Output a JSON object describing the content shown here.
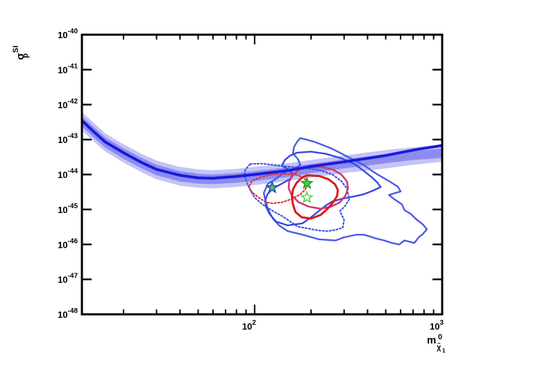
{
  "chart_data": {
    "type": "line",
    "title": "",
    "x_scale": "log",
    "y_scale": "log",
    "xlim": [
      12,
      1000
    ],
    "ylim": [
      1e-48,
      1e-40
    ],
    "xlabel": {
      "main": "m",
      "sub": "χ̃",
      "sub2": "1",
      "sup": "0"
    },
    "ylabel": {
      "main": "σ",
      "sub": "p",
      "sup": "SI"
    },
    "x_ticks": [
      {
        "value": 100,
        "base": "10",
        "exp": "2"
      },
      {
        "value": 1000,
        "base": "10",
        "exp": "3"
      }
    ],
    "y_ticks": [
      {
        "value": 1e-40,
        "base": "10",
        "exp": "-40"
      },
      {
        "value": 1e-41,
        "base": "10",
        "exp": "-41"
      },
      {
        "value": 1e-42,
        "base": "10",
        "exp": "-42"
      },
      {
        "value": 1e-43,
        "base": "10",
        "exp": "-43"
      },
      {
        "value": 1e-44,
        "base": "10",
        "exp": "-44"
      },
      {
        "value": 1e-45,
        "base": "10",
        "exp": "-45"
      },
      {
        "value": 1e-46,
        "base": "10",
        "exp": "-46"
      },
      {
        "value": 1e-47,
        "base": "10",
        "exp": "-47"
      },
      {
        "value": 1e-48,
        "base": "10",
        "exp": "-48"
      }
    ],
    "grid": false,
    "limit_curve": {
      "color": "#1a1adc",
      "points": [
        [
          12,
          3.5e-43
        ],
        [
          14,
          1.6e-43
        ],
        [
          16,
          8.5e-44
        ],
        [
          20,
          4.2e-44
        ],
        [
          25,
          2.2e-44
        ],
        [
          30,
          1.4e-44
        ],
        [
          40,
          9.5e-45
        ],
        [
          50,
          8e-45
        ],
        [
          60,
          7.8e-45
        ],
        [
          80,
          8.8e-45
        ],
        [
          100,
          1e-44
        ],
        [
          150,
          1.3e-44
        ],
        [
          200,
          1.7e-44
        ],
        [
          300,
          2.3e-44
        ],
        [
          500,
          3.5e-44
        ],
        [
          700,
          5e-44
        ],
        [
          1000,
          6.8e-44
        ]
      ]
    },
    "band_1sigma": {
      "color": "#8c8cf0",
      "lower": [
        [
          12,
          2.4e-43
        ],
        [
          14,
          1.1e-43
        ],
        [
          16,
          5.8e-44
        ],
        [
          20,
          2.8e-44
        ],
        [
          25,
          1.5e-44
        ],
        [
          30,
          9.5e-45
        ],
        [
          40,
          6.3e-45
        ],
        [
          50,
          5.5e-45
        ],
        [
          60,
          5.3e-45
        ],
        [
          80,
          5.8e-45
        ],
        [
          100,
          6.5e-45
        ],
        [
          150,
          8.5e-45
        ],
        [
          200,
          1.1e-44
        ],
        [
          300,
          1.5e-44
        ],
        [
          500,
          2.1e-44
        ],
        [
          700,
          2.6e-44
        ],
        [
          1000,
          3e-44
        ]
      ],
      "upper": [
        [
          12,
          4.6e-43
        ],
        [
          14,
          2.2e-43
        ],
        [
          16,
          1.15e-43
        ],
        [
          20,
          5.6e-44
        ],
        [
          25,
          3e-44
        ],
        [
          30,
          1.9e-44
        ],
        [
          40,
          1.25e-44
        ],
        [
          50,
          1.05e-44
        ],
        [
          60,
          1e-44
        ],
        [
          80,
          1.1e-44
        ],
        [
          100,
          1.25e-44
        ],
        [
          150,
          1.6e-44
        ],
        [
          200,
          2e-44
        ],
        [
          300,
          2.7e-44
        ],
        [
          500,
          3.8e-44
        ],
        [
          700,
          4.6e-44
        ],
        [
          1000,
          5.5e-44
        ]
      ]
    },
    "band_2sigma": {
      "color": "#c4c4f6",
      "lower": [
        [
          12,
          1.8e-43
        ],
        [
          14,
          8.5e-44
        ],
        [
          16,
          4.5e-44
        ],
        [
          20,
          2.2e-44
        ],
        [
          25,
          1.15e-44
        ],
        [
          30,
          7.3e-45
        ],
        [
          40,
          4.8e-45
        ],
        [
          50,
          4.2e-45
        ],
        [
          60,
          4e-45
        ],
        [
          80,
          4.4e-45
        ],
        [
          100,
          5e-45
        ],
        [
          150,
          6.5e-45
        ],
        [
          200,
          8.2e-45
        ],
        [
          300,
          1.1e-44
        ],
        [
          500,
          1.5e-44
        ],
        [
          700,
          1.9e-44
        ],
        [
          1000,
          2.3e-44
        ]
      ],
      "upper": [
        [
          12,
          6e-43
        ],
        [
          14,
          2.9e-43
        ],
        [
          16,
          1.5e-43
        ],
        [
          20,
          7.3e-44
        ],
        [
          25,
          3.9e-44
        ],
        [
          30,
          2.5e-44
        ],
        [
          40,
          1.65e-44
        ],
        [
          50,
          1.4e-44
        ],
        [
          60,
          1.32e-44
        ],
        [
          80,
          1.45e-44
        ],
        [
          100,
          1.65e-44
        ],
        [
          150,
          2.1e-44
        ],
        [
          200,
          2.6e-44
        ],
        [
          300,
          3.5e-44
        ],
        [
          500,
          5e-44
        ],
        [
          700,
          6e-44
        ],
        [
          1000,
          7.2e-44
        ]
      ]
    },
    "contours": [
      {
        "style": "solid",
        "color": "#4a5ae6",
        "width": 2.4,
        "points": [
          [
            175,
            1.1e-43
          ],
          [
            188,
            1e-43
          ],
          [
            210,
            8.5e-44
          ],
          [
            230,
            7e-44
          ],
          [
            258,
            5.5e-44
          ],
          [
            290,
            4e-44
          ],
          [
            330,
            2.8e-44
          ],
          [
            380,
            1.9e-44
          ],
          [
            420,
            1.3e-44
          ],
          [
            460,
            9.5e-45
          ],
          [
            520,
            6.5e-45
          ],
          [
            580,
            4.5e-45
          ],
          [
            600,
            3.3e-45
          ],
          [
            520,
            2.6e-45
          ],
          [
            560,
            1.9e-45
          ],
          [
            610,
            1.4e-45
          ],
          [
            630,
            9.5e-46
          ],
          [
            680,
            7.5e-46
          ],
          [
            720,
            5.5e-46
          ],
          [
            790,
            3.7e-46
          ],
          [
            830,
            2.7e-46
          ],
          [
            790,
            2e-46
          ],
          [
            750,
            1.6e-46
          ],
          [
            710,
            1.1e-46
          ],
          [
            630,
            1.3e-46
          ],
          [
            590,
            1e-46
          ],
          [
            540,
            1.1e-46
          ],
          [
            490,
            1.3e-46
          ],
          [
            440,
            1.5e-46
          ],
          [
            410,
            1.7e-46
          ],
          [
            380,
            1.9e-46
          ],
          [
            350,
            1.9e-46
          ],
          [
            300,
            1.6e-46
          ],
          [
            270,
            1.3e-46
          ],
          [
            220,
            1.4e-46
          ],
          [
            180,
            1.9e-46
          ],
          [
            150,
            2.4e-46
          ],
          [
            135,
            3.5e-46
          ],
          [
            125,
            5.5e-46
          ],
          [
            118,
            1e-45
          ],
          [
            115,
            1.6e-45
          ],
          [
            113,
            2.3e-45
          ],
          [
            112,
            3e-45
          ],
          [
            118,
            5.5e-45
          ],
          [
            130,
            7.5e-45
          ],
          [
            142,
            1.1e-44
          ],
          [
            150,
            1.3e-44
          ],
          [
            165,
            1.5e-44
          ],
          [
            175,
            1.9e-44
          ],
          [
            170,
            2.8e-44
          ],
          [
            160,
            4e-44
          ],
          [
            162,
            6e-44
          ],
          [
            168,
            8.5e-44
          ],
          [
            175,
            1.1e-43
          ]
        ]
      },
      {
        "style": "solid",
        "color": "#3848e0",
        "width": 2.4,
        "points": [
          [
            168,
            4.2e-44
          ],
          [
            200,
            4.5e-44
          ],
          [
            240,
            3.9e-44
          ],
          [
            290,
            2.9e-44
          ],
          [
            340,
            2e-44
          ],
          [
            380,
            1.3e-44
          ],
          [
            420,
            8.5e-45
          ],
          [
            450,
            6e-45
          ],
          [
            470,
            4.4e-45
          ],
          [
            430,
            3.5e-45
          ],
          [
            380,
            2.7e-45
          ],
          [
            330,
            2.3e-45
          ],
          [
            290,
            2e-45
          ],
          [
            260,
            1.7e-45
          ],
          [
            240,
            1.3e-45
          ],
          [
            220,
            9e-46
          ],
          [
            200,
            6e-46
          ],
          [
            180,
            4e-46
          ],
          [
            150,
            3.5e-46
          ],
          [
            130,
            4.5e-46
          ],
          [
            120,
            7.5e-46
          ],
          [
            115,
            1.2e-45
          ],
          [
            114,
            1.8e-45
          ],
          [
            117,
            2.7e-45
          ],
          [
            125,
            4e-45
          ],
          [
            140,
            5.5e-45
          ],
          [
            155,
            7.5e-45
          ],
          [
            160,
            1.05e-44
          ],
          [
            150,
            1.4e-44
          ],
          [
            140,
            1.8e-44
          ],
          [
            145,
            2.6e-44
          ],
          [
            155,
            3.5e-44
          ],
          [
            168,
            4.2e-44
          ]
        ]
      },
      {
        "style": "dotted",
        "color": "#3a56d8",
        "width": 2.2,
        "points": [
          [
            95,
            2e-44
          ],
          [
            110,
            2.05e-44
          ],
          [
            140,
            1.75e-44
          ],
          [
            180,
            1.55e-44
          ],
          [
            220,
            1.35e-44
          ],
          [
            260,
            1e-44
          ],
          [
            290,
            6.5e-45
          ],
          [
            310,
            4e-45
          ],
          [
            320,
            2e-45
          ],
          [
            305,
            1.3e-45
          ],
          [
            285,
            9e-46
          ],
          [
            300,
            5e-46
          ],
          [
            295,
            3e-46
          ],
          [
            270,
            2.6e-46
          ],
          [
            245,
            2.4e-46
          ],
          [
            220,
            2.5e-46
          ],
          [
            190,
            2.9e-46
          ],
          [
            170,
            3.2e-46
          ],
          [
            155,
            4.5e-46
          ],
          [
            140,
            6.5e-46
          ],
          [
            125,
            9e-46
          ],
          [
            110,
            1.4e-45
          ],
          [
            100,
            2.2e-45
          ],
          [
            95,
            3.5e-45
          ],
          [
            92,
            5e-45
          ],
          [
            90,
            7e-45
          ],
          [
            88,
            9.5e-45
          ],
          [
            89,
            1.3e-44
          ],
          [
            92,
            1.7e-44
          ],
          [
            95,
            2e-44
          ]
        ]
      },
      {
        "style": "dotted",
        "color": "#e03030",
        "width": 2.2,
        "points": [
          [
            145,
            1.05e-44
          ],
          [
            125,
            1e-44
          ],
          [
            108,
            8.5e-45
          ],
          [
            97,
            6.5e-45
          ],
          [
            93,
            4.5e-45
          ],
          [
            97,
            3.1e-45
          ],
          [
            105,
            2.2e-45
          ],
          [
            115,
            1.6e-45
          ],
          [
            125,
            1.5e-45
          ],
          [
            140,
            1.6e-45
          ],
          [
            158,
            2e-45
          ],
          [
            175,
            2.7e-45
          ],
          [
            185,
            3.6e-45
          ],
          [
            192,
            4.8e-45
          ],
          [
            190,
            6.5e-45
          ],
          [
            180,
            8.5e-45
          ],
          [
            165,
            1e-44
          ],
          [
            145,
            1.05e-44
          ]
        ]
      },
      {
        "style": "solid",
        "color": "#cf3a72",
        "width": 2.6,
        "points": [
          [
            190,
            1.6e-44
          ],
          [
            225,
            1.65e-44
          ],
          [
            260,
            1.4e-44
          ],
          [
            290,
            1e-44
          ],
          [
            310,
            6.5e-45
          ],
          [
            315,
            4e-45
          ],
          [
            305,
            2.5e-45
          ],
          [
            285,
            1.6e-45
          ],
          [
            255,
            1.2e-45
          ],
          [
            225,
            1.05e-45
          ],
          [
            195,
            1.2e-45
          ],
          [
            172,
            1.6e-45
          ],
          [
            158,
            2.5e-45
          ],
          [
            152,
            4e-45
          ],
          [
            153,
            6.5e-45
          ],
          [
            160,
            9.5e-45
          ],
          [
            172,
            1.35e-44
          ],
          [
            190,
            1.6e-44
          ]
        ]
      },
      {
        "style": "solid",
        "color": "#e01818",
        "width": 3.0,
        "points": [
          [
            190,
            9.5e-45
          ],
          [
            222,
            9e-45
          ],
          [
            248,
            7.3e-45
          ],
          [
            268,
            5.3e-45
          ],
          [
            278,
            3.6e-45
          ],
          [
            275,
            2.4e-45
          ],
          [
            262,
            1.6e-45
          ],
          [
            245,
            1.05e-45
          ],
          [
            225,
            7e-46
          ],
          [
            200,
            5.5e-46
          ],
          [
            178,
            6e-46
          ],
          [
            165,
            8.5e-46
          ],
          [
            160,
            1.4e-45
          ],
          [
            158,
            2.3e-45
          ],
          [
            160,
            3.7e-45
          ],
          [
            167,
            5.7e-45
          ],
          [
            178,
            8e-45
          ],
          [
            190,
            9.5e-45
          ]
        ]
      }
    ],
    "markers": [
      {
        "x": 124,
        "y": 4.2e-45,
        "shape": "star-filled",
        "fill": "#3ed43e",
        "stroke": "#2a40c8"
      },
      {
        "x": 190,
        "y": 5.6e-45,
        "shape": "star-filled",
        "fill": "#3ed43e",
        "stroke": "#2a9a2a"
      },
      {
        "x": 190,
        "y": 2.2e-45,
        "shape": "star-open",
        "fill": "none",
        "stroke": "#4ed64e"
      }
    ]
  }
}
